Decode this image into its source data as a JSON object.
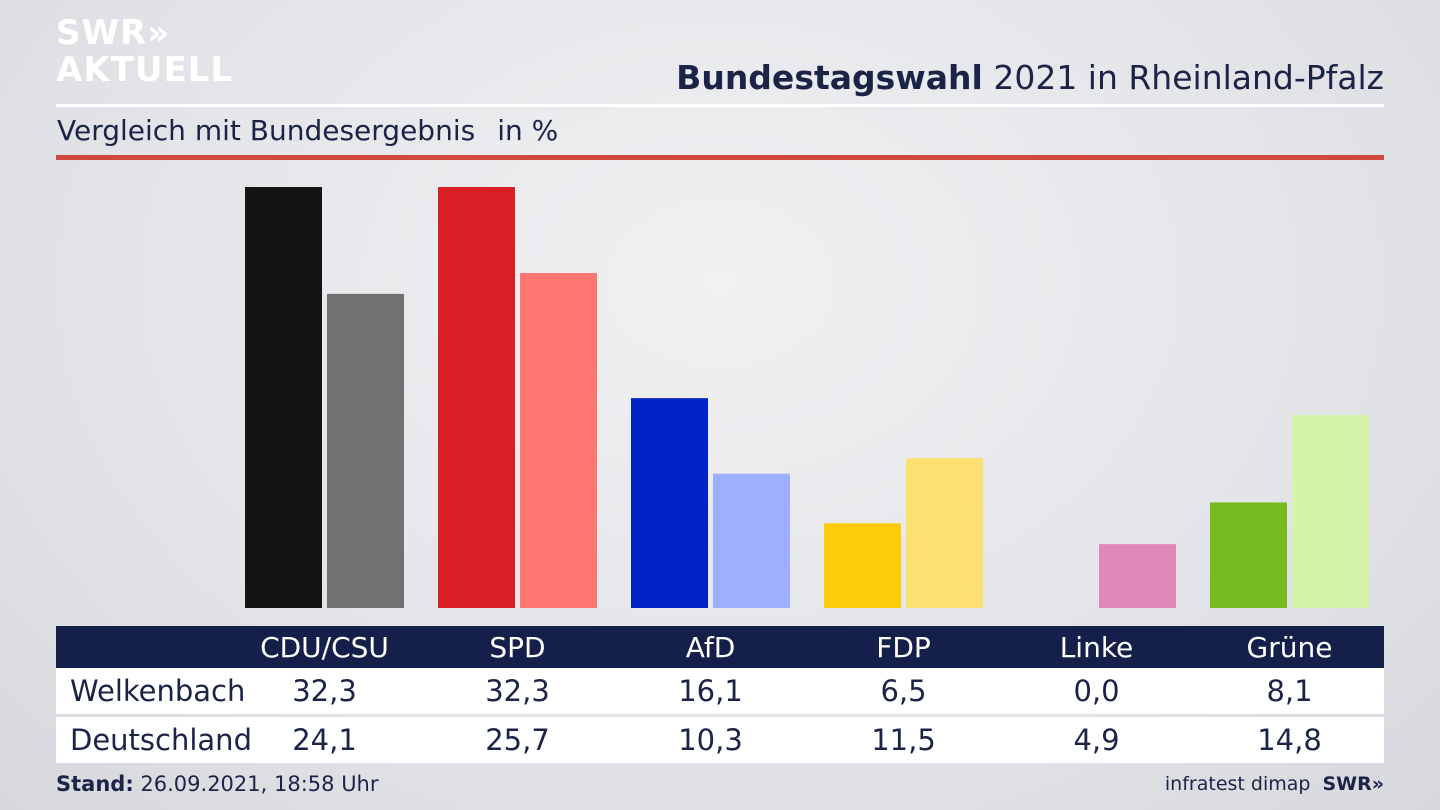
{
  "brand": {
    "line1": "SWR»",
    "line2": "AKTUELL"
  },
  "header": {
    "title_bold": "Bundestagswahl",
    "title_rest": "2021 in Rheinland-Pfalz",
    "subtitle": "Vergleich mit Bundesergebnis",
    "unit": "in %"
  },
  "chart_data": {
    "type": "bar",
    "categories": [
      "CDU/CSU",
      "SPD",
      "AfD",
      "FDP",
      "Linke",
      "Grüne"
    ],
    "series": [
      {
        "name": "Welkenbach",
        "values": [
          32.3,
          32.3,
          16.1,
          6.5,
          0.0,
          8.1
        ],
        "colors": [
          "#141414",
          "#d81f26",
          "#0023c8",
          "#fecb0a",
          "#c45ea0",
          "#76bc21"
        ]
      },
      {
        "name": "Deutschland",
        "values": [
          24.1,
          25.7,
          10.3,
          11.5,
          4.9,
          14.8
        ],
        "colors": [
          "#727170",
          "#ff7570",
          "#9fafff",
          "#fde072",
          "#e089b8",
          "#d4f5a9"
        ]
      }
    ],
    "ylim": [
      0,
      32.3
    ],
    "grid": false,
    "legend": "table-below"
  },
  "table": {
    "rows": [
      {
        "label": "Welkenbach",
        "values": [
          "32,3",
          "32,3",
          "16,1",
          "6,5",
          "0,0",
          "8,1"
        ]
      },
      {
        "label": "Deutschland",
        "values": [
          "24,1",
          "25,7",
          "10,3",
          "11,5",
          "4,9",
          "14,8"
        ]
      }
    ]
  },
  "footer": {
    "stand_label": "Stand:",
    "stand_value": "26.09.2021, 18:58 Uhr",
    "source": "infratest dimap",
    "brand": "SWR»"
  }
}
